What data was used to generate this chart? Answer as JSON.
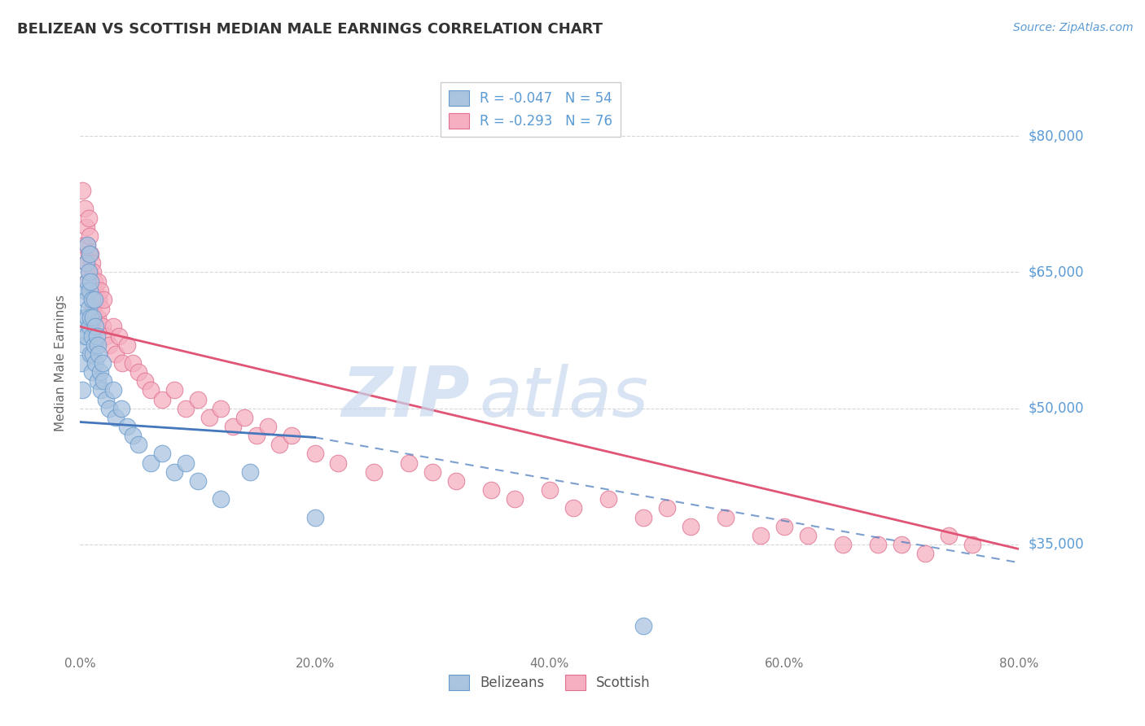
{
  "title": "BELIZEAN VS SCOTTISH MEDIAN MALE EARNINGS CORRELATION CHART",
  "source": "Source: ZipAtlas.com",
  "ylabel": "Median Male Earnings",
  "xlim": [
    0.0,
    0.8
  ],
  "ylim": [
    23000,
    87000
  ],
  "yticks": [
    35000,
    50000,
    65000,
    80000
  ],
  "ytick_labels": [
    "$35,000",
    "$50,000",
    "$65,000",
    "$80,000"
  ],
  "xticks": [
    0.0,
    0.2,
    0.4,
    0.6,
    0.8
  ],
  "xtick_labels": [
    "0.0%",
    "20.0%",
    "40.0%",
    "60.0%",
    "80.0%"
  ],
  "belizean_facecolor": "#aac4e0",
  "belizean_edgecolor": "#6699cc",
  "scottish_facecolor": "#f5afc0",
  "scottish_edgecolor": "#e07090",
  "belizean_line_color": "#4477bb",
  "scottish_line_color": "#e05575",
  "R_belizean": -0.047,
  "N_belizean": 54,
  "R_scottish": -0.293,
  "N_scottish": 76,
  "legend_label_belizean": "Belizeans",
  "legend_label_scottish": "Scottish",
  "title_color": "#333333",
  "axis_label_color": "#5b9bd5",
  "ylabel_color": "#666666",
  "grid_color": "#cccccc",
  "background_color": "#ffffff",
  "belizean_trend_x0": 0.0,
  "belizean_trend_y0": 48500,
  "belizean_trend_x1_solid": 0.2,
  "belizean_trend_y1_solid": 46800,
  "belizean_trend_x1_dashed": 0.8,
  "belizean_trend_y1_dashed": 33000,
  "scottish_trend_x0": 0.0,
  "scottish_trend_y0": 59000,
  "scottish_trend_x1": 0.8,
  "scottish_trend_y1": 34500,
  "belizean_points_x": [
    0.001,
    0.002,
    0.003,
    0.003,
    0.004,
    0.004,
    0.005,
    0.005,
    0.005,
    0.006,
    0.006,
    0.006,
    0.007,
    0.007,
    0.008,
    0.008,
    0.008,
    0.009,
    0.009,
    0.009,
    0.01,
    0.01,
    0.01,
    0.011,
    0.011,
    0.012,
    0.012,
    0.013,
    0.013,
    0.014,
    0.015,
    0.015,
    0.016,
    0.017,
    0.018,
    0.019,
    0.02,
    0.022,
    0.025,
    0.028,
    0.03,
    0.035,
    0.04,
    0.045,
    0.05,
    0.06,
    0.07,
    0.08,
    0.09,
    0.1,
    0.12,
    0.145,
    0.2,
    0.48
  ],
  "belizean_points_y": [
    55000,
    52000,
    60000,
    58000,
    63000,
    57000,
    66000,
    62000,
    58000,
    68000,
    64000,
    60000,
    65000,
    61000,
    67000,
    63000,
    59000,
    64000,
    60000,
    56000,
    62000,
    58000,
    54000,
    60000,
    56000,
    62000,
    57000,
    59000,
    55000,
    58000,
    57000,
    53000,
    56000,
    54000,
    52000,
    55000,
    53000,
    51000,
    50000,
    52000,
    49000,
    50000,
    48000,
    47000,
    46000,
    44000,
    45000,
    43000,
    44000,
    42000,
    40000,
    43000,
    38000,
    26000
  ],
  "scottish_points_x": [
    0.002,
    0.003,
    0.004,
    0.005,
    0.005,
    0.006,
    0.006,
    0.007,
    0.007,
    0.008,
    0.008,
    0.009,
    0.009,
    0.01,
    0.01,
    0.011,
    0.011,
    0.012,
    0.012,
    0.013,
    0.013,
    0.014,
    0.015,
    0.015,
    0.016,
    0.017,
    0.018,
    0.019,
    0.02,
    0.022,
    0.025,
    0.028,
    0.03,
    0.033,
    0.036,
    0.04,
    0.045,
    0.05,
    0.055,
    0.06,
    0.07,
    0.08,
    0.09,
    0.1,
    0.11,
    0.12,
    0.13,
    0.14,
    0.15,
    0.16,
    0.17,
    0.18,
    0.2,
    0.22,
    0.25,
    0.28,
    0.3,
    0.32,
    0.35,
    0.37,
    0.4,
    0.42,
    0.45,
    0.48,
    0.5,
    0.52,
    0.55,
    0.58,
    0.6,
    0.62,
    0.65,
    0.68,
    0.7,
    0.72,
    0.74,
    0.76
  ],
  "scottish_points_y": [
    74000,
    68000,
    72000,
    70000,
    66000,
    68000,
    64000,
    71000,
    67000,
    69000,
    65000,
    67000,
    63000,
    66000,
    62000,
    65000,
    61000,
    64000,
    60000,
    63000,
    59000,
    62000,
    64000,
    60000,
    62000,
    63000,
    61000,
    59000,
    62000,
    58000,
    57000,
    59000,
    56000,
    58000,
    55000,
    57000,
    55000,
    54000,
    53000,
    52000,
    51000,
    52000,
    50000,
    51000,
    49000,
    50000,
    48000,
    49000,
    47000,
    48000,
    46000,
    47000,
    45000,
    44000,
    43000,
    44000,
    43000,
    42000,
    41000,
    40000,
    41000,
    39000,
    40000,
    38000,
    39000,
    37000,
    38000,
    36000,
    37000,
    36000,
    35000,
    35000,
    35000,
    34000,
    36000,
    35000
  ]
}
